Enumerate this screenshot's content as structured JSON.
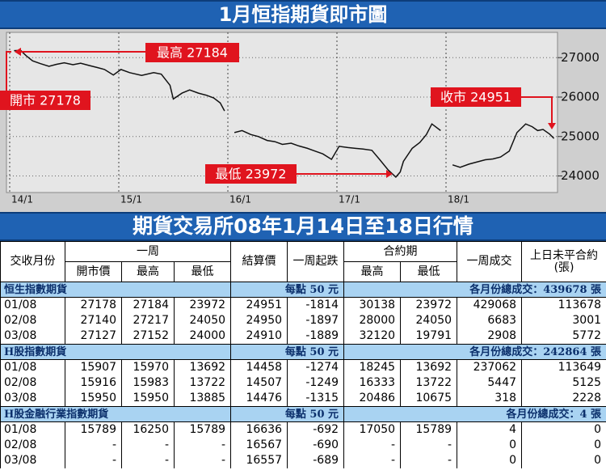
{
  "header": {
    "title": "1月恒指期貨即市圖"
  },
  "chart_data": {
    "type": "line",
    "x": [
      0.04,
      0.1,
      0.15,
      0.21,
      0.28,
      0.36,
      0.43,
      0.5,
      0.58,
      0.65,
      0.73,
      0.8,
      0.87,
      0.95,
      1.02,
      1.1,
      1.21,
      1.32,
      1.39,
      1.47,
      1.5,
      1.58,
      1.65,
      1.73,
      1.8,
      1.87,
      1.93,
      1.97,
      2.0,
      2.06,
      2.13,
      2.21,
      2.28,
      2.36,
      2.43,
      2.5,
      2.58,
      2.65,
      2.73,
      2.8,
      2.87,
      2.95,
      3.02,
      3.1,
      3.17,
      3.24,
      3.32,
      3.39,
      3.47,
      3.54,
      3.58,
      3.61,
      3.69,
      3.76,
      3.82,
      3.87,
      3.95,
      4.0,
      4.06,
      4.13,
      4.21,
      4.28,
      4.36,
      4.43,
      4.5,
      4.58,
      4.65,
      4.73,
      4.79,
      4.84,
      4.89,
      4.95,
      4.99
    ],
    "values": [
      27178,
      27184,
      27050,
      26920,
      26850,
      26780,
      26830,
      26870,
      26820,
      26860,
      26800,
      26750,
      26700,
      26560,
      26700,
      26620,
      26550,
      26620,
      26580,
      26300,
      25950,
      26100,
      26180,
      26100,
      26050,
      25980,
      25850,
      25650,
      null,
      25100,
      25150,
      25050,
      25000,
      24900,
      24870,
      24800,
      24830,
      24760,
      24700,
      24630,
      24560,
      24420,
      24750,
      24720,
      24700,
      24680,
      24650,
      24420,
      24150,
      23972,
      24100,
      24370,
      24700,
      24850,
      25050,
      25320,
      25150,
      null,
      24280,
      24220,
      24300,
      24350,
      24410,
      24430,
      24480,
      24630,
      25100,
      25320,
      25250,
      25150,
      25180,
      25060,
      24951
    ],
    "color": "#111111",
    "xlim": [
      0,
      5
    ],
    "xticks": [
      {
        "value": 0,
        "label": "14/1"
      },
      {
        "value": 1,
        "label": "15/1"
      },
      {
        "value": 2,
        "label": "16/1"
      },
      {
        "value": 3,
        "label": "17/1"
      },
      {
        "value": 4,
        "label": "18/1"
      }
    ],
    "ylim": [
      23600,
      27600
    ],
    "yticks": [
      24000,
      25000,
      26000,
      27000
    ],
    "grid": true,
    "annotations": [
      "最高 27184",
      "開市 27178",
      "收市 24951",
      "最低 23972"
    ]
  },
  "table": {
    "title": "期貨交易所08年1月14日至18日行情",
    "head": [
      "交收月份",
      "一周",
      "結算價",
      "一周起跌",
      "合約期",
      "一周成交",
      "上日未平合約",
      "(張)"
    ],
    "subhead": [
      "開市價",
      "最高",
      "最低",
      "最高",
      "最低"
    ],
    "sections": [
      {
        "name": "恒生指數期貨",
        "unit": "每點 50 元",
        "total": "各月份總成交：439678 張",
        "rows": [
          [
            "01/08",
            "27178",
            "27184",
            "23972",
            "24951",
            "-1814",
            "30138",
            "23972",
            "429068",
            "113678"
          ],
          [
            "02/08",
            "27140",
            "27217",
            "24050",
            "24950",
            "-1897",
            "28000",
            "24050",
            "6683",
            "3001"
          ],
          [
            "03/08",
            "27127",
            "27152",
            "24000",
            "24910",
            "-1889",
            "32120",
            "19791",
            "2908",
            "5772"
          ]
        ]
      },
      {
        "name": "H股指數期貨",
        "unit": "每點 50 元",
        "total": "各月份總成交：242864 張",
        "rows": [
          [
            "01/08",
            "15907",
            "15970",
            "13692",
            "14458",
            "-1274",
            "18245",
            "13692",
            "237062",
            "113649"
          ],
          [
            "02/08",
            "15916",
            "15983",
            "13722",
            "14507",
            "-1249",
            "16333",
            "13722",
            "5447",
            "5125"
          ],
          [
            "03/08",
            "15950",
            "15950",
            "13885",
            "14476",
            "-1315",
            "20486",
            "10675",
            "318",
            "2228"
          ]
        ]
      },
      {
        "name": "H股金融行業指數期貨",
        "unit": "每點 50 元",
        "total": "各月份總成交：4 張",
        "rows": [
          [
            "01/08",
            "15789",
            "16250",
            "15789",
            "16636",
            "-692",
            "17050",
            "15789",
            "4",
            "0"
          ],
          [
            "02/08",
            "-",
            "-",
            "-",
            "16567",
            "-690",
            "-",
            "-",
            "0",
            "0"
          ],
          [
            "03/08",
            "-",
            "-",
            "-",
            "16557",
            "-689",
            "-",
            "-",
            "0",
            "0"
          ]
        ]
      }
    ]
  }
}
